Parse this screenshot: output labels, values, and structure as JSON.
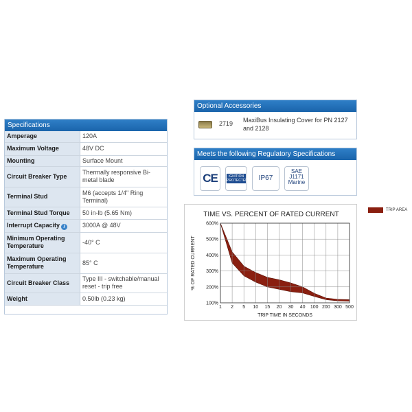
{
  "specifications": {
    "title": "Specifications",
    "rows": [
      {
        "label": "Amperage",
        "value": "120A"
      },
      {
        "label": "Maximum Voltage",
        "value": "48V DC"
      },
      {
        "label": "Mounting",
        "value": "Surface Mount"
      },
      {
        "label": "Circuit Breaker Type",
        "value": "Thermally responsive Bi-metal blade"
      },
      {
        "label": "Terminal Stud",
        "value": "M6 (accepts 1/4\" Ring Terminal)"
      },
      {
        "label": "Terminal Stud Torque",
        "value": "50 in-lb (5.65 Nm)"
      },
      {
        "label": "Interrupt Capacity",
        "value": "3000A @ 48V",
        "info": true
      },
      {
        "label": "Minimum Operating Temperature",
        "value": "-40° C"
      },
      {
        "label": "Maximum Operating Temperature",
        "value": "85° C"
      },
      {
        "label": "Circuit Breaker Class",
        "value": "Type III - switchable/manual reset - trip free"
      },
      {
        "label": "Weight",
        "value": "0.50lb (0.23 kg)"
      }
    ],
    "info_icon": "info-icon"
  },
  "accessories": {
    "title": "Optional Accessories",
    "item": {
      "part": "2719",
      "description": "MaxiBus Insulating Cover for PN 2127 and 2128"
    }
  },
  "regulatory": {
    "title": "Meets the following Regulatory Specifications",
    "badges": {
      "ce": "CE",
      "ignition": "IGNITION PROTECTED",
      "ip": "IP67",
      "sae_lines": [
        "SAE",
        "J1171",
        "Marine"
      ]
    }
  },
  "colors": {
    "header_blue": "#1f6db5",
    "trip_area": "#8a1f10",
    "label_bg": "#dde6f0"
  },
  "chart_data": {
    "type": "area",
    "title": "TIME VS. PERCENT OF RATED CURRENT",
    "xlabel": "TRIP TIME IN SECONDS",
    "ylabel": "% OF RATED CURRENT",
    "x_ticks": [
      1,
      2,
      5,
      10,
      15,
      20,
      30,
      40,
      100,
      200,
      300,
      500
    ],
    "y_ticks": [
      "100%",
      "200%",
      "300%",
      "400%",
      "500%",
      "600%"
    ],
    "ylim": [
      100,
      600
    ],
    "legend": "TRIP AREA",
    "series": [
      {
        "name": "TRIP AREA",
        "upper": [
          [
            1,
            600
          ],
          [
            2,
            420
          ],
          [
            5,
            330
          ],
          [
            10,
            290
          ],
          [
            15,
            260
          ],
          [
            20,
            245
          ],
          [
            30,
            225
          ],
          [
            40,
            200
          ],
          [
            100,
            160
          ],
          [
            200,
            130
          ],
          [
            300,
            122
          ],
          [
            500,
            120
          ]
        ],
        "lower": [
          [
            1,
            600
          ],
          [
            2,
            350
          ],
          [
            5,
            270
          ],
          [
            10,
            230
          ],
          [
            15,
            200
          ],
          [
            20,
            185
          ],
          [
            30,
            170
          ],
          [
            40,
            162
          ],
          [
            100,
            140
          ],
          [
            200,
            120
          ],
          [
            300,
            112
          ],
          [
            500,
            110
          ]
        ]
      }
    ]
  }
}
